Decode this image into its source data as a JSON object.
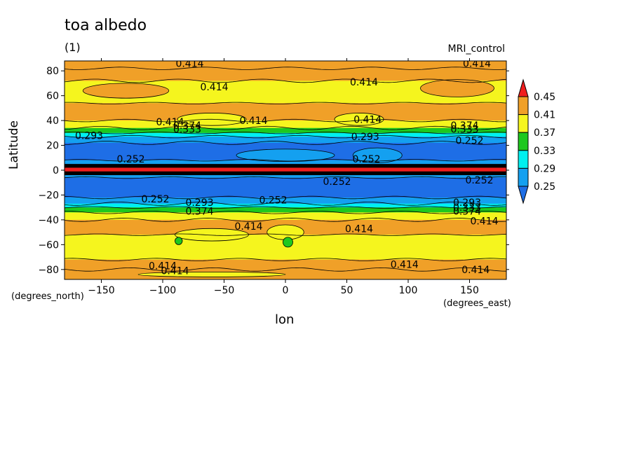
{
  "chart_data": {
    "type": "heatmap",
    "title": "toa albedo",
    "subtitle": "(1)",
    "model_label": "MRI_control",
    "xlabel": "lon",
    "ylabel": "Latitude",
    "x_units": "(degrees_east)",
    "y_units": "(degrees_north)",
    "xlim": [
      -180,
      180
    ],
    "ylim": [
      -88,
      88
    ],
    "x_ticks": [
      -150,
      -100,
      -50,
      0,
      50,
      100,
      150
    ],
    "y_ticks": [
      -80,
      -60,
      -40,
      -20,
      0,
      20,
      40,
      60,
      80
    ],
    "colorbar": {
      "levels": [
        0.25,
        0.29,
        0.33,
        0.37,
        0.41,
        0.45
      ],
      "level_labels": [
        "0.25",
        "0.29",
        "0.33",
        "0.37",
        "0.41",
        "0.45"
      ],
      "colors": [
        "#1e6ee6",
        "#14a0f0",
        "#00f0f0",
        "#1ec81e",
        "#f5f51e",
        "#f0a028",
        "#f01e1e"
      ]
    },
    "latitude_bands": [
      {
        "lat_from": 88,
        "lat_to": 82,
        "color": "#f0a028"
      },
      {
        "lat_from": 82,
        "lat_to": 72,
        "color": "#f0a028"
      },
      {
        "lat_from": 72,
        "lat_to": 54,
        "color": "#f5f51e"
      },
      {
        "lat_from": 54,
        "lat_to": 40,
        "color": "#f0a028"
      },
      {
        "lat_from": 40,
        "lat_to": 34,
        "color": "#f5f51e"
      },
      {
        "lat_from": 34,
        "lat_to": 30,
        "color": "#1ec81e"
      },
      {
        "lat_from": 30,
        "lat_to": 27,
        "color": "#00f0f0"
      },
      {
        "lat_from": 27,
        "lat_to": 22,
        "color": "#14a0f0"
      },
      {
        "lat_from": 22,
        "lat_to": 8,
        "color": "#1e6ee6"
      },
      {
        "lat_from": 8,
        "lat_to": 2,
        "color": "#14a0f0"
      },
      {
        "lat_from": 2,
        "lat_to": -1,
        "color": "#f01e1e"
      },
      {
        "lat_from": -1,
        "lat_to": -6,
        "color": "#14a0f0"
      },
      {
        "lat_from": -6,
        "lat_to": -22,
        "color": "#1e6ee6"
      },
      {
        "lat_from": -22,
        "lat_to": -27,
        "color": "#14a0f0"
      },
      {
        "lat_from": -27,
        "lat_to": -30,
        "color": "#00f0f0"
      },
      {
        "lat_from": -30,
        "lat_to": -34,
        "color": "#1ec81e"
      },
      {
        "lat_from": -34,
        "lat_to": -40,
        "color": "#f5f51e"
      },
      {
        "lat_from": -40,
        "lat_to": -52,
        "color": "#f0a028"
      },
      {
        "lat_from": -52,
        "lat_to": -72,
        "color": "#f5f51e"
      },
      {
        "lat_from": -72,
        "lat_to": -80,
        "color": "#f0a028"
      },
      {
        "lat_from": -80,
        "lat_to": -88,
        "color": "#f0a028"
      }
    ],
    "patches": [
      {
        "lon": -60,
        "lat": 41,
        "rx": 28,
        "ry": 5,
        "color": "#f5f51e"
      },
      {
        "lon": 60,
        "lat": 41,
        "rx": 20,
        "ry": 5,
        "color": "#f5f51e"
      },
      {
        "lon": 140,
        "lat": 66,
        "rx": 30,
        "ry": 7,
        "color": "#f0a028"
      },
      {
        "lon": -130,
        "lat": 64,
        "rx": 35,
        "ry": 6,
        "color": "#f0a028"
      },
      {
        "lon": 0,
        "lat": 12,
        "rx": 40,
        "ry": 5,
        "color": "#14a0f0"
      },
      {
        "lon": 75,
        "lat": 12,
        "rx": 20,
        "ry": 6,
        "color": "#14a0f0"
      },
      {
        "lon": -60,
        "lat": -52,
        "rx": 30,
        "ry": 5,
        "color": "#f5f51e"
      },
      {
        "lon": 0,
        "lat": -50,
        "rx": 15,
        "ry": 6,
        "color": "#f5f51e"
      },
      {
        "lon": -87,
        "lat": -57,
        "rx": 3,
        "ry": 3,
        "color": "#1ec81e"
      },
      {
        "lon": 2,
        "lat": -58,
        "rx": 4,
        "ry": 4,
        "color": "#1ec81e"
      },
      {
        "lon": -60,
        "lat": -84,
        "rx": 60,
        "ry": 2,
        "color": "#f5f51e"
      }
    ],
    "equator_band": {
      "lat_from": 5,
      "lat_to": -4
    },
    "contour_labels": [
      {
        "text": "0.414",
        "lon": -78,
        "lat": 86
      },
      {
        "text": "0.414",
        "lon": 156,
        "lat": 86
      },
      {
        "text": "0.414",
        "lon": 64,
        "lat": 71
      },
      {
        "text": "0.414",
        "lon": -58,
        "lat": 67
      },
      {
        "text": "0.414",
        "lon": -94,
        "lat": 39
      },
      {
        "text": "0.414",
        "lon": -26,
        "lat": 40
      },
      {
        "text": "0.414",
        "lon": 67,
        "lat": 41
      },
      {
        "text": "0.374",
        "lon": -80,
        "lat": 36
      },
      {
        "text": "0.333",
        "lon": -80,
        "lat": 33
      },
      {
        "text": "0.374",
        "lon": 146,
        "lat": 36
      },
      {
        "text": "0.333",
        "lon": 146,
        "lat": 33
      },
      {
        "text": "0.293",
        "lon": -160,
        "lat": 28
      },
      {
        "text": "0.293",
        "lon": 65,
        "lat": 27
      },
      {
        "text": "0.252",
        "lon": 150,
        "lat": 24
      },
      {
        "text": "0.252",
        "lon": -126,
        "lat": 9
      },
      {
        "text": "0.252",
        "lon": 66,
        "lat": 9
      },
      {
        "text": "0.252",
        "lon": 42,
        "lat": -9
      },
      {
        "text": "0.252",
        "lon": 158,
        "lat": -8
      },
      {
        "text": "0.252",
        "lon": -106,
        "lat": -23
      },
      {
        "text": "0.252",
        "lon": -10,
        "lat": -24
      },
      {
        "text": "0.293",
        "lon": -70,
        "lat": -26
      },
      {
        "text": "0.374",
        "lon": -70,
        "lat": -33
      },
      {
        "text": "0.293",
        "lon": 148,
        "lat": -26
      },
      {
        "text": "0.333",
        "lon": 148,
        "lat": -30
      },
      {
        "text": "0.374",
        "lon": 148,
        "lat": -33
      },
      {
        "text": "0.414",
        "lon": 162,
        "lat": -41
      },
      {
        "text": "0.414",
        "lon": -30,
        "lat": -45
      },
      {
        "text": "0.414",
        "lon": 60,
        "lat": -47
      },
      {
        "text": "0.414",
        "lon": -100,
        "lat": -77
      },
      {
        "text": "0.414",
        "lon": 97,
        "lat": -76
      },
      {
        "text": "0.414",
        "lon": -90,
        "lat": -81
      },
      {
        "text": "0.414",
        "lon": 155,
        "lat": -80
      }
    ]
  }
}
